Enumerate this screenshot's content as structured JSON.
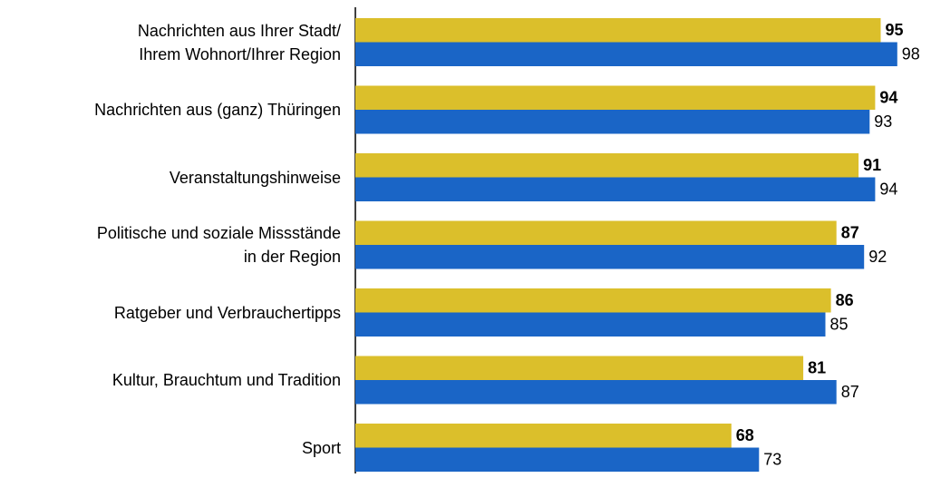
{
  "chart_data": {
    "type": "bar",
    "orientation": "horizontal",
    "categories": [
      "Nachrichten aus Ihrer Stadt/\nIhrem Wohnort/Ihrer Region",
      "Nachrichten aus (ganz) Thüringen",
      "Veranstaltungshinweise",
      "Politische und soziale Missstände\nin der Region",
      "Ratgeber und Verbrauchertipps",
      "Kultur, Brauchtum und Tradition",
      "Sport"
    ],
    "series": [
      {
        "color": "#dbbf2b",
        "values": [
          95,
          94,
          91,
          87,
          86,
          81,
          68
        ],
        "label_weight": "bold"
      },
      {
        "color": "#1a65c6",
        "values": [
          98,
          93,
          94,
          92,
          85,
          87,
          73
        ],
        "label_weight": "normal"
      }
    ]
  }
}
